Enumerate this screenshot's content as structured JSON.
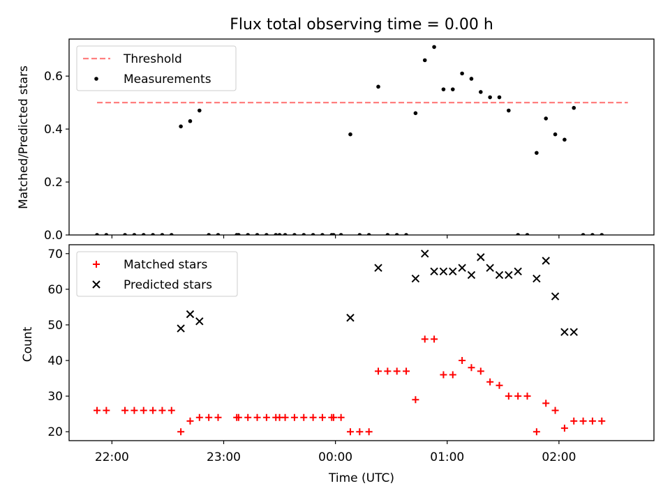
{
  "figure": {
    "title": "Flux total observing time = 0.00 h",
    "xlabel": "Time (UTC)"
  },
  "colors": {
    "threshold": "#ff7f7f",
    "measurements": "#000000",
    "matched": "#ff0000",
    "predicted": "#000000",
    "axes": "#000000",
    "legend_border": "#cccccc"
  },
  "chart_data": [
    {
      "type": "scatter",
      "panel": "top",
      "ylabel": "Matched/Predicted stars",
      "xlim": [
        "21:37",
        "02:51"
      ],
      "ylim": [
        0,
        0.74
      ],
      "yticks": [
        0.0,
        0.2,
        0.4,
        0.6
      ],
      "ytick_labels": [
        "0.0",
        "0.2",
        "0.4",
        "0.6"
      ],
      "xticks": [
        "22:00",
        "23:00",
        "00:00",
        "01:00",
        "02:00"
      ],
      "grid": false,
      "legend_position": "top-left",
      "series": [
        {
          "name": "Threshold",
          "kind": "dashed-line",
          "x": [
            "21:52",
            "02:37"
          ],
          "y": [
            0.5,
            0.5
          ]
        },
        {
          "name": "Measurements",
          "kind": "points",
          "x": [
            "21:52",
            "21:57",
            "22:07",
            "22:12",
            "22:17",
            "22:22",
            "22:27",
            "22:32",
            "22:37",
            "22:42",
            "22:47",
            "22:52",
            "22:57",
            "23:07",
            "23:08",
            "23:13",
            "23:18",
            "23:23",
            "23:28",
            "23:30",
            "23:33",
            "23:38",
            "23:43",
            "23:48",
            "23:53",
            "23:58",
            "23:59",
            "00:03",
            "00:08",
            "00:13",
            "00:18",
            "00:23",
            "00:28",
            "00:33",
            "00:38",
            "00:43",
            "00:48",
            "00:53",
            "00:58",
            "01:03",
            "01:08",
            "01:13",
            "01:18",
            "01:23",
            "01:28",
            "01:33",
            "01:38",
            "01:43",
            "01:48",
            "01:53",
            "01:58",
            "02:03",
            "02:08",
            "02:13",
            "02:18",
            "02:23"
          ],
          "y": [
            0,
            0,
            0,
            0,
            0,
            0,
            0,
            0,
            0.41,
            0.43,
            0.47,
            0,
            0,
            0,
            0,
            0,
            0,
            0,
            0,
            0,
            0,
            0,
            0,
            0,
            0,
            0,
            0,
            0,
            0.38,
            0,
            0,
            0.56,
            0,
            0,
            0,
            0.46,
            0.66,
            0.71,
            0.55,
            0.55,
            0.61,
            0.59,
            0.54,
            0.52,
            0.52,
            0.47,
            0,
            0,
            0.31,
            0.44,
            0.38,
            0.36,
            0.48,
            0,
            0,
            0
          ]
        }
      ]
    },
    {
      "type": "scatter",
      "panel": "bottom",
      "ylabel": "Count",
      "xlim": [
        "21:37",
        "02:51"
      ],
      "ylim": [
        17.5,
        72.5
      ],
      "yticks": [
        20,
        30,
        40,
        50,
        60,
        70
      ],
      "ytick_labels": [
        "20",
        "30",
        "40",
        "50",
        "60",
        "70"
      ],
      "xticks": [
        "22:00",
        "23:00",
        "00:00",
        "01:00",
        "02:00"
      ],
      "grid": false,
      "legend_position": "top-left",
      "series": [
        {
          "name": "Matched stars",
          "marker": "plus",
          "x": [
            "21:52",
            "21:57",
            "22:07",
            "22:12",
            "22:17",
            "22:22",
            "22:27",
            "22:32",
            "22:37",
            "22:42",
            "22:47",
            "22:52",
            "22:57",
            "23:07",
            "23:08",
            "23:13",
            "23:18",
            "23:23",
            "23:28",
            "23:30",
            "23:33",
            "23:38",
            "23:43",
            "23:48",
            "23:53",
            "23:58",
            "23:59",
            "00:03",
            "00:08",
            "00:13",
            "00:18",
            "00:23",
            "00:28",
            "00:33",
            "00:38",
            "00:43",
            "00:48",
            "00:53",
            "00:58",
            "01:03",
            "01:08",
            "01:13",
            "01:18",
            "01:23",
            "01:28",
            "01:33",
            "01:38",
            "01:43",
            "01:48",
            "01:53",
            "01:58",
            "02:03",
            "02:08",
            "02:13",
            "02:18",
            "02:23"
          ],
          "y": [
            26,
            26,
            26,
            26,
            26,
            26,
            26,
            26,
            20,
            23,
            24,
            24,
            24,
            24,
            24,
            24,
            24,
            24,
            24,
            24,
            24,
            24,
            24,
            24,
            24,
            24,
            24,
            24,
            20,
            20,
            20,
            37,
            37,
            37,
            37,
            29,
            46,
            46,
            36,
            36,
            40,
            38,
            37,
            34,
            33,
            30,
            30,
            30,
            20,
            28,
            26,
            21,
            23,
            23,
            23,
            23
          ]
        },
        {
          "name": "Predicted stars",
          "marker": "x",
          "x": [
            "22:37",
            "22:42",
            "22:47",
            "00:08",
            "00:23",
            "00:43",
            "00:48",
            "00:53",
            "00:58",
            "01:03",
            "01:08",
            "01:13",
            "01:18",
            "01:23",
            "01:28",
            "01:33",
            "01:38",
            "01:48",
            "01:53",
            "01:58",
            "02:03",
            "02:08"
          ],
          "y": [
            49,
            53,
            51,
            52,
            66,
            63,
            70,
            65,
            65,
            65,
            66,
            64,
            69,
            66,
            64,
            64,
            65,
            63,
            68,
            58,
            48,
            48
          ]
        }
      ]
    }
  ]
}
